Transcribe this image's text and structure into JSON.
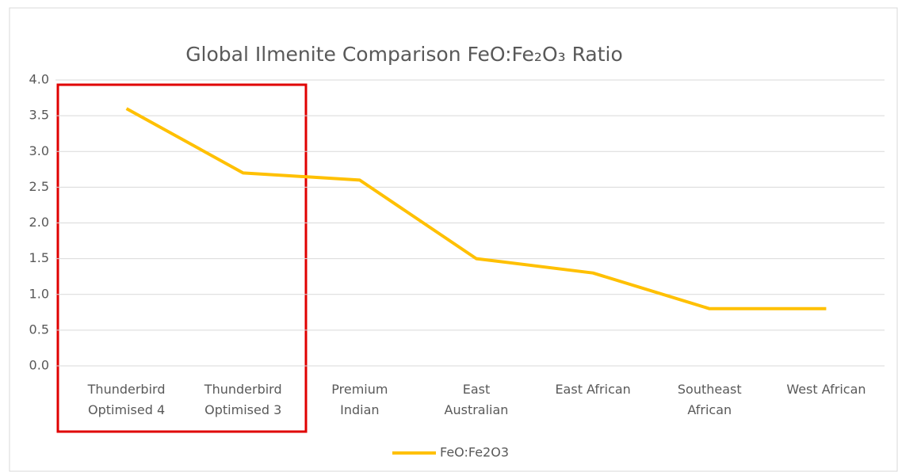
{
  "chart_data": {
    "type": "line",
    "title": "Global Ilmenite Comparison FeO:Fe₂O₃ Ratio",
    "categories": [
      "Thunderbird Optimised 4",
      "Thunderbird Optimised 3",
      "Premium Indian",
      "East Australian",
      "East African",
      "Southeast African",
      "West African"
    ],
    "series": [
      {
        "name": "FeO:Fe2O3",
        "color": "#ffc000",
        "values": [
          3.6,
          2.7,
          2.6,
          1.5,
          1.3,
          0.8,
          0.8
        ]
      }
    ],
    "ylim": [
      0,
      4
    ],
    "yticks": [
      {
        "value": 0,
        "label": "0.0"
      },
      0.5,
      {
        "value": 1,
        "label": "1.0"
      },
      1.5,
      {
        "value": 2,
        "label": "2.0"
      },
      2.5,
      {
        "value": 3,
        "label": "3.0"
      },
      3.5,
      {
        "value": 4,
        "label": "4.0"
      }
    ],
    "grid": true,
    "legend": "bottom"
  }
}
